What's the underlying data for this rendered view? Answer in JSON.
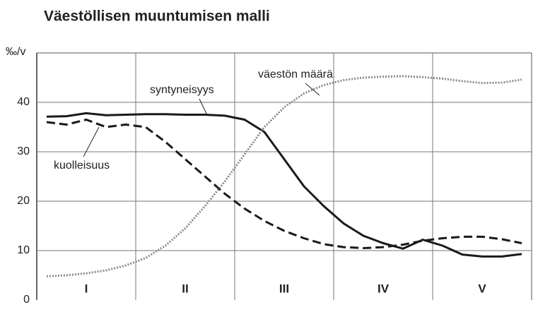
{
  "chart_data": {
    "type": "line",
    "title": "Väestöllisen muuntumisen malli",
    "y_label": "‰/v",
    "categories": [
      null,
      null,
      "I",
      null,
      null,
      null,
      null,
      "II",
      null,
      null,
      null,
      null,
      "III",
      null,
      null,
      null,
      null,
      "IV",
      null,
      null,
      null,
      null,
      "V",
      null,
      null
    ],
    "series": [
      {
        "name": "syntyneisyys",
        "color": "#1a1a1a",
        "dash": "solid",
        "values": [
          37.1,
          37.2,
          37.8,
          37.4,
          37.5,
          37.6,
          37.6,
          37.5,
          37.5,
          37.3,
          36.5,
          34,
          28.5,
          23,
          19,
          15.5,
          13,
          11.5,
          10.4,
          12.2,
          11,
          9.2,
          8.8,
          8.8,
          9.3
        ]
      },
      {
        "name": "kuolleisuus",
        "color": "#1a1a1a",
        "dash": "dashed",
        "values": [
          36,
          35.5,
          36.5,
          35,
          35.5,
          35,
          32,
          28.5,
          25,
          21.5,
          18.5,
          16,
          14,
          12.5,
          11.3,
          10.7,
          10.5,
          10.7,
          11.2,
          12,
          12.5,
          12.8,
          12.8,
          12.3,
          11.5
        ]
      },
      {
        "name": "väestön määrä",
        "color": "#8a8a8a",
        "dash": "dotted",
        "values": [
          4.8,
          5,
          5.4,
          6,
          7,
          8.5,
          11,
          14.5,
          19,
          24,
          29.5,
          35,
          39,
          41.8,
          43.5,
          44.5,
          45,
          45.2,
          45.3,
          45.1,
          44.8,
          44.3,
          43.9,
          44,
          44.6
        ]
      }
    ],
    "ylim": [
      0,
      50
    ],
    "yticks": [
      0,
      10,
      20,
      30,
      40
    ],
    "grid": true,
    "stages": 5
  }
}
